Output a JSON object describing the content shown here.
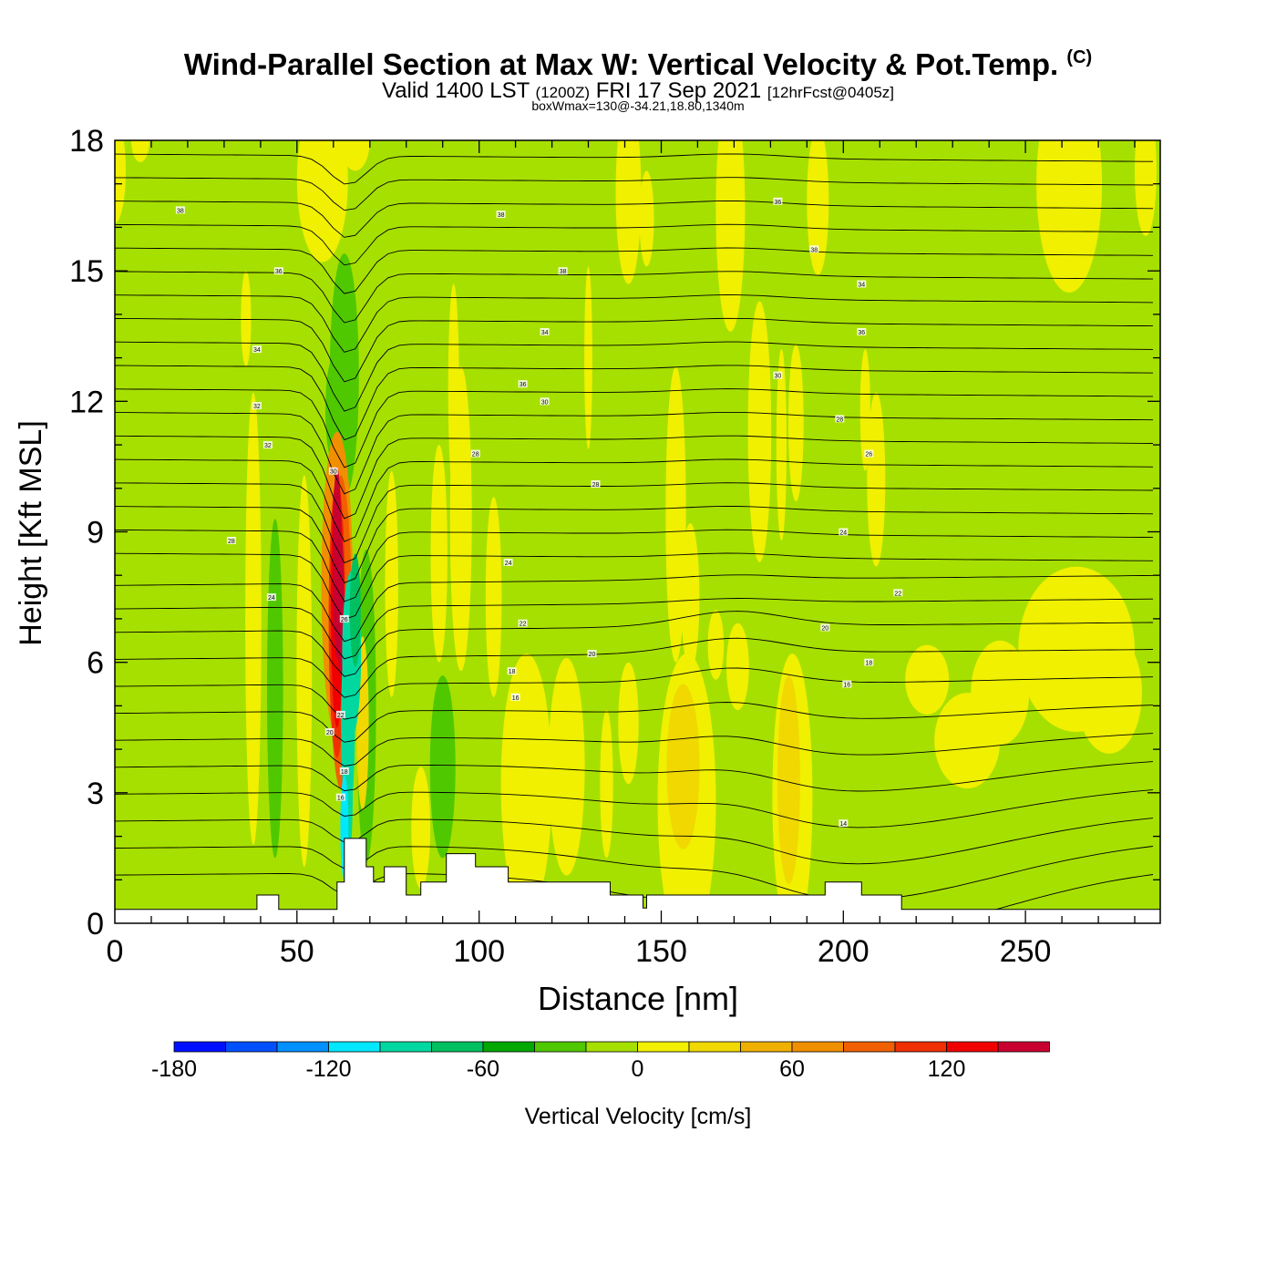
{
  "title": {
    "main": "Wind-Parallel Section at Max W: Vertical Velocity & Pot.Temp.",
    "copyright": "(C)",
    "valid_prefix": "Valid 1400 LST",
    "valid_utc": "(1200Z)",
    "valid_date": "FRI 17 Sep 2021",
    "forecast": "[12hrFcst@0405z]",
    "box_wmax": "boxWmax=130@-34.21,18.80,1340m"
  },
  "chart_data": {
    "type": "heatmap",
    "xlabel": "Distance [nm]",
    "ylabel": "Height [Kft MSL]",
    "xlim": [
      0,
      287
    ],
    "ylim": [
      0,
      18
    ],
    "x_ticks": [
      0,
      50,
      100,
      150,
      200,
      250
    ],
    "x_tick_labels": [
      "0",
      "50",
      "100",
      "150",
      "200",
      "250"
    ],
    "y_ticks": [
      0,
      3,
      6,
      9,
      12,
      15,
      18
    ],
    "y_tick_labels": [
      "0",
      "3",
      "6",
      "9",
      "12",
      "15",
      "18"
    ],
    "background_value": "0 to 20",
    "background_color": "#a6e000",
    "colorbar": {
      "label": "Vertical Velocity [cm/s]",
      "levels": [
        -180,
        -160,
        -140,
        -120,
        -100,
        -80,
        -60,
        -40,
        -20,
        0,
        20,
        40,
        60,
        80,
        100,
        120,
        140,
        160
      ],
      "tick_values": [
        -180,
        -120,
        -60,
        0,
        60,
        120
      ],
      "tick_labels": [
        "-180",
        "-120",
        "-60",
        "0",
        "60",
        "120"
      ],
      "colors": [
        "#0010ff",
        "#0050ff",
        "#0090ff",
        "#00e8ff",
        "#00d8a0",
        "#00c060",
        "#00a800",
        "#50c800",
        "#a6e000",
        "#f0f000",
        "#f0d800",
        "#f0b000",
        "#f09000",
        "#f06000",
        "#f03000",
        "#f00000",
        "#c80030"
      ]
    },
    "velocity_features": [
      {
        "name": "updraft core",
        "x": [
          57,
          65
        ],
        "y": [
          3.0,
          10.8
        ],
        "peak_cm_s": 130,
        "color": "#c80030"
      },
      {
        "name": "downdraft band",
        "x": [
          61,
          70
        ],
        "y": [
          2.4,
          7.5
        ],
        "peak_cm_s": -120,
        "color": "#00e8ff"
      },
      {
        "name": "weak updraft",
        "x": [
          150,
          165
        ],
        "y": [
          0.6,
          5.3
        ],
        "peak_cm_s": 40,
        "color": "#f0d800"
      },
      {
        "name": "weak updraft",
        "x": [
          180,
          190
        ],
        "y": [
          1.0,
          5.5
        ],
        "peak_cm_s": 40,
        "color": "#f0d800"
      },
      {
        "name": "weak updraft",
        "x": [
          253,
          281
        ],
        "y": [
          4.5,
          7.4
        ],
        "peak_cm_s": 20,
        "color": "#f0f000"
      }
    ],
    "isentrope_labels": [
      "38",
      "36",
      "34",
      "32",
      "30",
      "28",
      "26",
      "24",
      "22",
      "20",
      "18",
      "16",
      "14"
    ],
    "terrain_nm_kft": [
      [
        0,
        0.32
      ],
      [
        39,
        0.32
      ],
      [
        39,
        0.65
      ],
      [
        45,
        0.65
      ],
      [
        45,
        0.32
      ],
      [
        61,
        0.32
      ],
      [
        61,
        0.95
      ],
      [
        63,
        0.95
      ],
      [
        63,
        1.95
      ],
      [
        69,
        1.95
      ],
      [
        69,
        1.3
      ],
      [
        71,
        1.3
      ],
      [
        71,
        0.95
      ],
      [
        74,
        0.95
      ],
      [
        74,
        1.3
      ],
      [
        80,
        1.3
      ],
      [
        80,
        0.65
      ],
      [
        84,
        0.65
      ],
      [
        84,
        0.95
      ],
      [
        91,
        0.95
      ],
      [
        91,
        1.6
      ],
      [
        99,
        1.6
      ],
      [
        99,
        1.3
      ],
      [
        108,
        1.3
      ],
      [
        108,
        0.95
      ],
      [
        136,
        0.95
      ],
      [
        136,
        0.65
      ],
      [
        145,
        0.65
      ],
      [
        145,
        0.35
      ],
      [
        146,
        0.35
      ],
      [
        146,
        0.65
      ],
      [
        195,
        0.65
      ],
      [
        195,
        0.95
      ],
      [
        205,
        0.95
      ],
      [
        205,
        0.65
      ],
      [
        216,
        0.65
      ],
      [
        216,
        0.32
      ],
      [
        287,
        0.32
      ]
    ]
  }
}
